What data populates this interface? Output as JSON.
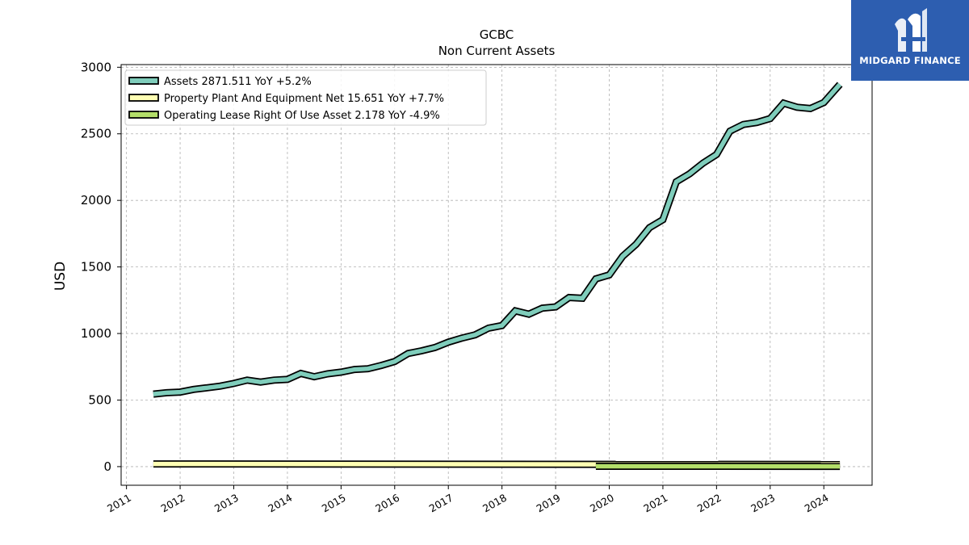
{
  "chart_data": {
    "type": "line",
    "title": "GCBC",
    "subtitle": "Non Current  Assets",
    "ylabel": "USD",
    "xlabel": "",
    "ylim": [
      -140,
      3020
    ],
    "xlim": [
      2010.9,
      2024.9
    ],
    "grid": true,
    "legend_position": "top-left",
    "x_ticks": [
      "2011",
      "2012",
      "2013",
      "2014",
      "2015",
      "2016",
      "2017",
      "2018",
      "2019",
      "2020",
      "2021",
      "2022",
      "2023",
      "2024"
    ],
    "y_ticks": [
      "0",
      "500",
      "1000",
      "1500",
      "2000",
      "2500",
      "3000"
    ],
    "series": [
      {
        "name": "Assets",
        "legend_label": "Assets  2871.511 YoY +5.2%",
        "color": "#7fcdbb",
        "x": [
          2011.5,
          2011.75,
          2012.0,
          2012.25,
          2012.5,
          2012.75,
          2013.0,
          2013.25,
          2013.5,
          2013.75,
          2014.0,
          2014.25,
          2014.5,
          2014.75,
          2015.0,
          2015.25,
          2015.5,
          2015.75,
          2016.0,
          2016.25,
          2016.5,
          2016.75,
          2017.0,
          2017.25,
          2017.5,
          2017.75,
          2018.0,
          2018.25,
          2018.5,
          2018.75,
          2019.0,
          2019.25,
          2019.5,
          2019.75,
          2020.0,
          2020.25,
          2020.5,
          2020.75,
          2021.0,
          2021.25,
          2021.5,
          2021.75,
          2022.0,
          2022.25,
          2022.5,
          2022.75,
          2023.0,
          2023.25,
          2023.5,
          2023.75,
          2024.0,
          2024.3
        ],
        "values": [
          545,
          555,
          560,
          580,
          592,
          605,
          625,
          650,
          635,
          650,
          655,
          700,
          675,
          697,
          710,
          730,
          735,
          760,
          790,
          850,
          870,
          895,
          935,
          965,
          990,
          1040,
          1060,
          1170,
          1145,
          1190,
          1200,
          1270,
          1265,
          1410,
          1440,
          1580,
          1670,
          1795,
          1855,
          2140,
          2200,
          2280,
          2345,
          2520,
          2570,
          2585,
          2615,
          2730,
          2700,
          2690,
          2735,
          2871.511
        ]
      },
      {
        "name": "Property Plant And Equipment Net",
        "legend_label": "Property Plant And Equipment Net  15.651 YoY +7.7%",
        "color": "#ffffb3",
        "x": [
          2011.5,
          2024.3
        ],
        "values": [
          20,
          15.651
        ]
      },
      {
        "name": "Operating Lease Right Of Use Asset",
        "legend_label": "Operating Lease Right Of Use Asset  2.178 YoY -4.9%",
        "color": "#b3de69",
        "x": [
          2019.75,
          2024.3
        ],
        "values": [
          2.5,
          2.178
        ]
      }
    ]
  },
  "logo": {
    "text": "MIDGARD FINANCE",
    "background": "#2d5eb0"
  }
}
